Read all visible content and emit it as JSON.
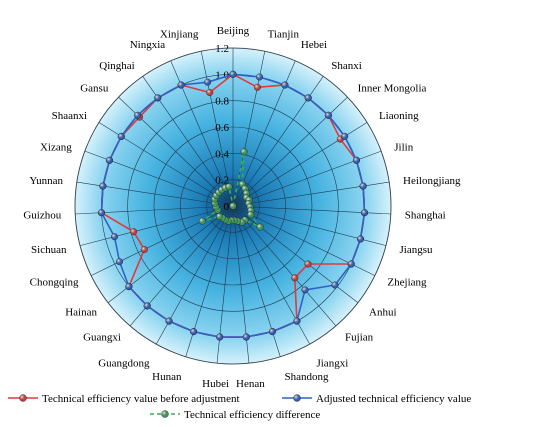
{
  "chart_data": {
    "type": "radar",
    "title": "",
    "categories": [
      "Beijing",
      "Tianjin",
      "Hebei",
      "Shanxi",
      "Inner Mongolia",
      "Liaoning",
      "Jilin",
      "Heilongjiang",
      "Shanghai",
      "Jiangsu",
      "Zhejiang",
      "Anhui",
      "Fujian",
      "Jiangxi",
      "Shandong",
      "Henan",
      "Hubei",
      "Hunan",
      "Guangdong",
      "Guangxi",
      "Hainan",
      "Chongqing",
      "Sichuan",
      "Guizhou",
      "Yunnan",
      "Xizang",
      "Shaanxi",
      "Gansu",
      "Qinghai",
      "Ningxia",
      "Xinjiang"
    ],
    "radial_ticks": [
      "0",
      "0.2",
      "0.4",
      "0.6",
      "0.8",
      "1.0",
      "1.2"
    ],
    "rmin": 0,
    "rmax": 1.2,
    "series": [
      {
        "name": "Technical efficiency value before adjustment",
        "color": "#e03a3a",
        "values": [
          1.0,
          0.92,
          1.0,
          1.0,
          1.0,
          0.96,
          1.0,
          1.0,
          1.0,
          1.0,
          1.0,
          0.72,
          0.72,
          1.0,
          1.0,
          1.0,
          1.0,
          1.0,
          1.0,
          1.0,
          1.0,
          0.75,
          0.78,
          1.0,
          1.0,
          1.0,
          1.0,
          0.98,
          1.0,
          1.0,
          0.88
        ]
      },
      {
        "name": "Adjusted technical efficiency value",
        "color": "#2f62c9",
        "values": [
          1.0,
          1.0,
          1.0,
          1.0,
          1.0,
          1.0,
          1.0,
          1.0,
          1.0,
          1.0,
          1.0,
          0.98,
          0.84,
          1.0,
          1.0,
          1.0,
          1.0,
          1.0,
          1.0,
          1.0,
          1.0,
          0.96,
          0.93,
          1.0,
          1.0,
          1.0,
          1.0,
          1.0,
          1.0,
          1.0,
          0.96
        ]
      },
      {
        "name": "Technical efficiency difference",
        "color": "#3aa95a",
        "dashed": true,
        "values": [
          0.0,
          0.42,
          0.18,
          0.16,
          0.14,
          0.12,
          0.13,
          0.12,
          0.13,
          0.14,
          0.15,
          0.26,
          0.14,
          0.14,
          0.12,
          0.11,
          0.11,
          0.12,
          0.12,
          0.12,
          0.13,
          0.26,
          0.12,
          0.13,
          0.14,
          0.15,
          0.15,
          0.15,
          0.15,
          0.15,
          0.15
        ]
      }
    ],
    "legend_position": "bottom",
    "grid": true
  }
}
